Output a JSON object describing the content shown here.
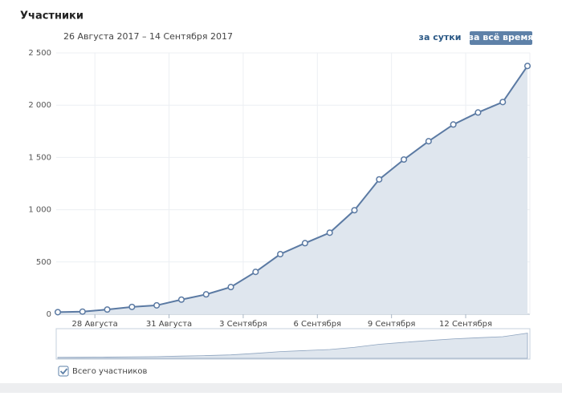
{
  "header": {
    "title": "Участники",
    "period": "26 Августа 2017 – 14 Сентября 2017",
    "buttons": [
      "за сутки",
      "за всё время"
    ]
  },
  "chart_data": {
    "type": "area",
    "categories": [
      null,
      null,
      "28 Августа",
      null,
      null,
      "31 Августа",
      null,
      null,
      "3 Сентября",
      null,
      null,
      "6 Сентября",
      null,
      null,
      "9 Сентября",
      null,
      null,
      "12 Сентября",
      null,
      null
    ],
    "series": [
      {
        "name": "Всего участников",
        "color": "#5b7aa3",
        "values": [
          20,
          25,
          45,
          70,
          85,
          140,
          190,
          260,
          405,
          575,
          680,
          780,
          995,
          1290,
          1480,
          1655,
          1815,
          1930,
          2030,
          2375
        ]
      }
    ],
    "ylim": [
      0,
      2500
    ],
    "yticks": [
      0,
      500,
      {
        "value": 1000,
        "label": "1 000"
      },
      {
        "value": 1500,
        "label": "1 500"
      },
      {
        "value": 2000,
        "label": "2 000"
      },
      {
        "value": 2500,
        "label": "2 500"
      }
    ],
    "grid": true
  }
}
